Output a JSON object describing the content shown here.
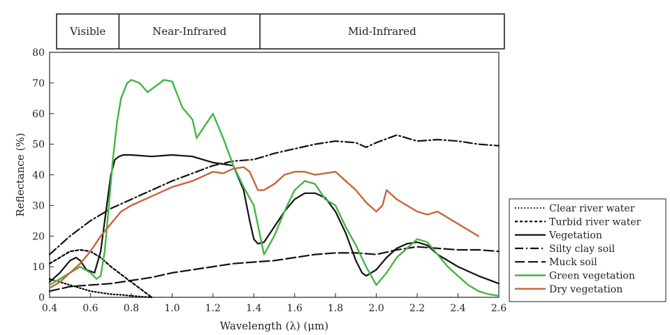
{
  "chart_data": {
    "type": "line",
    "xlabel": "Wavelength (λ) (μm)",
    "ylabel": "Reflectance (%)",
    "xlim": [
      0.4,
      2.6
    ],
    "ylim": [
      0,
      80
    ],
    "xticks": [
      "0.4",
      "0.6",
      "0.8",
      "1.0",
      "1.2",
      "1.4",
      "1.6",
      "1.8",
      "2.0",
      "2.2",
      "2.4",
      "2.6"
    ],
    "yticks": [
      "0",
      "10",
      "20",
      "30",
      "40",
      "50",
      "60",
      "70",
      "80"
    ],
    "grid": false,
    "legend_position": "right",
    "bands": [
      {
        "label": "Visible",
        "x": [
          0.4,
          0.74
        ]
      },
      {
        "label": "Near-Infrared",
        "x": [
          0.74,
          1.43
        ]
      },
      {
        "label": "Mid-Infrared",
        "x": [
          1.43,
          2.62
        ]
      }
    ],
    "series": [
      {
        "name": "Clear river water",
        "color": "#000000",
        "dash": "dotted",
        "x": [
          0.4,
          0.45,
          0.5,
          0.55,
          0.6,
          0.65,
          0.7,
          0.75,
          0.8,
          0.85,
          0.9
        ],
        "y": [
          6,
          5,
          4,
          3,
          2,
          1.5,
          1,
          0.8,
          0.5,
          0.2,
          0
        ]
      },
      {
        "name": "Turbid river water",
        "color": "#000000",
        "dash": "dashed",
        "x": [
          0.4,
          0.45,
          0.5,
          0.55,
          0.6,
          0.65,
          0.7,
          0.75,
          0.8,
          0.85,
          0.9
        ],
        "y": [
          11,
          13,
          15,
          15.5,
          15,
          13,
          10,
          7.5,
          5,
          2.5,
          0
        ]
      },
      {
        "name": "Vegetation",
        "color": "#111111",
        "dash": "solid",
        "x": [
          0.4,
          0.45,
          0.5,
          0.53,
          0.55,
          0.58,
          0.62,
          0.65,
          0.68,
          0.7,
          0.72,
          0.74,
          0.76,
          0.8,
          0.9,
          1.0,
          1.1,
          1.2,
          1.3,
          1.35,
          1.38,
          1.4,
          1.42,
          1.45,
          1.5,
          1.55,
          1.6,
          1.65,
          1.7,
          1.75,
          1.8,
          1.85,
          1.9,
          1.93,
          1.95,
          2.0,
          2.05,
          2.1,
          2.15,
          2.2,
          2.25,
          2.3,
          2.4,
          2.5,
          2.6
        ],
        "y": [
          5,
          8,
          12,
          13,
          12,
          9,
          8,
          15,
          30,
          40,
          45,
          46,
          46.5,
          46.5,
          46,
          46.5,
          46,
          44,
          43,
          35,
          25,
          19,
          17.5,
          18,
          23,
          28,
          32,
          34,
          34,
          32.5,
          28,
          21,
          12,
          8,
          7,
          9,
          13,
          16,
          17.5,
          18,
          17,
          14,
          10,
          7,
          4.5
        ]
      },
      {
        "name": "Silty clay soil",
        "color": "#111111",
        "dash": "dashdot",
        "x": [
          0.4,
          0.5,
          0.6,
          0.7,
          0.8,
          0.9,
          1.0,
          1.1,
          1.2,
          1.3,
          1.4,
          1.5,
          1.6,
          1.7,
          1.8,
          1.9,
          1.95,
          2.0,
          2.1,
          2.2,
          2.3,
          2.4,
          2.5,
          2.6
        ],
        "y": [
          14,
          20,
          25,
          29,
          32,
          35,
          38,
          40.5,
          43,
          44.5,
          45,
          47,
          48.5,
          50,
          51,
          50.5,
          49,
          50.5,
          53,
          51,
          51.5,
          51,
          50,
          49.5
        ]
      },
      {
        "name": "Muck soil",
        "color": "#111111",
        "dash": "longdash",
        "x": [
          0.4,
          0.5,
          0.6,
          0.7,
          0.8,
          0.9,
          1.0,
          1.1,
          1.2,
          1.3,
          1.4,
          1.5,
          1.6,
          1.7,
          1.8,
          1.9,
          2.0,
          2.1,
          2.2,
          2.3,
          2.4,
          2.5,
          2.6
        ],
        "y": [
          2,
          3.5,
          4,
          4.5,
          5.5,
          6.5,
          8,
          9,
          10,
          11,
          11.5,
          12,
          13,
          14,
          14.5,
          14.5,
          14,
          15.5,
          16.5,
          16,
          15.5,
          15.5,
          15
        ]
      },
      {
        "name": "Green vegetation",
        "color": "#44b444",
        "dash": "solid",
        "x": [
          0.4,
          0.45,
          0.5,
          0.55,
          0.6,
          0.63,
          0.65,
          0.67,
          0.69,
          0.71,
          0.73,
          0.75,
          0.78,
          0.8,
          0.84,
          0.88,
          0.92,
          0.96,
          1.0,
          1.05,
          1.1,
          1.12,
          1.15,
          1.2,
          1.25,
          1.3,
          1.35,
          1.4,
          1.45,
          1.5,
          1.55,
          1.6,
          1.65,
          1.7,
          1.75,
          1.8,
          1.85,
          1.9,
          1.95,
          2.0,
          2.05,
          2.1,
          2.15,
          2.2,
          2.25,
          2.3,
          2.35,
          2.4,
          2.45,
          2.5,
          2.55,
          2.6
        ],
        "y": [
          4,
          6,
          8,
          10,
          8,
          6,
          7,
          15,
          30,
          45,
          57,
          65,
          70,
          71,
          70,
          67,
          69,
          71,
          70.5,
          62,
          58,
          52,
          55,
          60,
          52,
          43,
          36,
          30,
          14,
          20,
          28,
          35,
          38,
          37,
          32,
          30,
          23,
          17,
          10,
          4,
          8,
          13,
          16,
          19,
          18,
          14,
          10,
          7,
          4,
          2,
          1,
          0.5
        ]
      },
      {
        "name": "Dry vegetation",
        "color": "#c8643a",
        "dash": "solid",
        "x": [
          0.4,
          0.45,
          0.5,
          0.55,
          0.6,
          0.65,
          0.7,
          0.75,
          0.8,
          0.9,
          1.0,
          1.1,
          1.2,
          1.25,
          1.3,
          1.35,
          1.38,
          1.4,
          1.42,
          1.45,
          1.5,
          1.55,
          1.6,
          1.65,
          1.7,
          1.75,
          1.8,
          1.85,
          1.9,
          1.95,
          2.0,
          2.03,
          2.05,
          2.1,
          2.15,
          2.2,
          2.25,
          2.3,
          2.4,
          2.5
        ],
        "y": [
          3,
          5,
          8,
          11,
          15,
          20,
          24,
          28,
          30,
          33,
          36,
          38,
          41,
          40.5,
          42,
          42.5,
          41,
          38,
          35,
          35,
          37,
          40,
          41,
          41,
          40,
          40.5,
          41,
          38,
          35,
          31,
          28,
          30,
          35,
          32,
          30,
          28,
          27,
          28,
          24,
          20
        ]
      }
    ]
  }
}
